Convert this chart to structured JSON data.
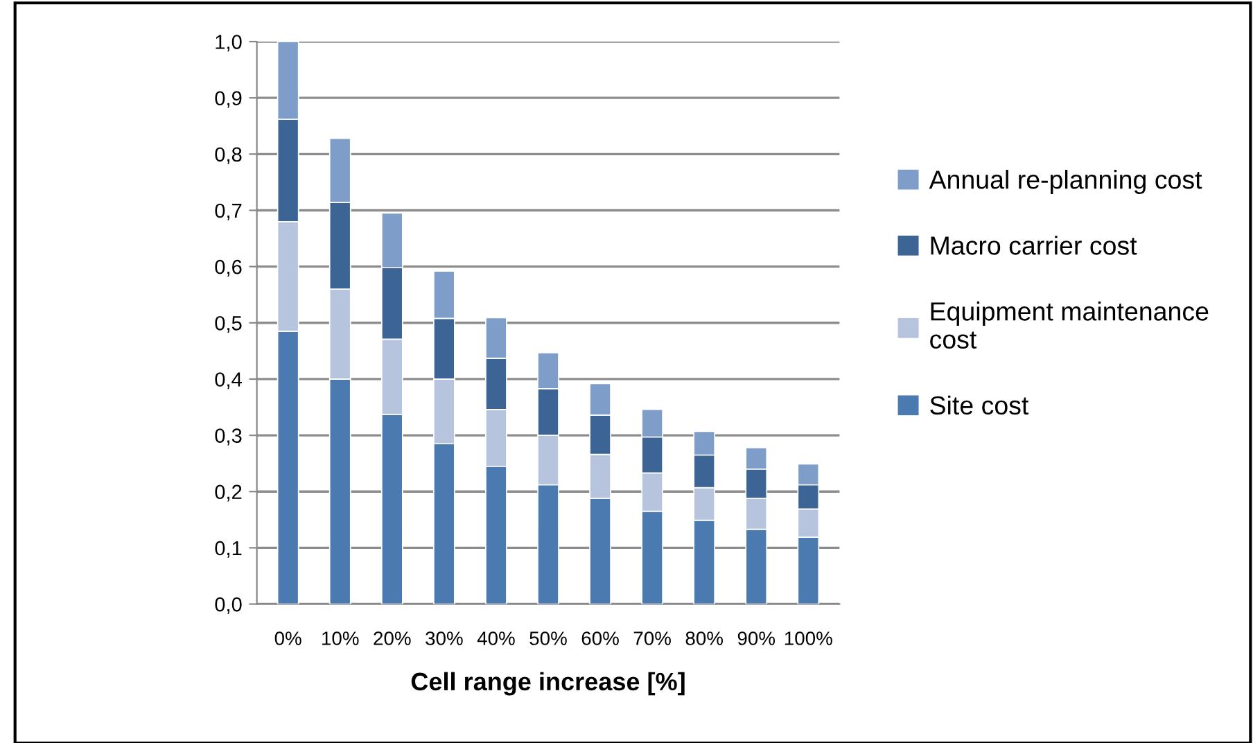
{
  "chart_data": {
    "type": "bar",
    "stacked": true,
    "xlabel": "Cell range increase [%]",
    "categories": [
      "0%",
      "10%",
      "20%",
      "30%",
      "40%",
      "50%",
      "60%",
      "70%",
      "80%",
      "90%",
      "100%"
    ],
    "series": [
      {
        "name": "Site cost",
        "color": "#4a7ab0",
        "values": [
          0.485,
          0.4,
          0.337,
          0.285,
          0.245,
          0.212,
          0.188,
          0.165,
          0.149,
          0.133,
          0.119
        ]
      },
      {
        "name": "Equipment maintenance cost",
        "color": "#b6c4de",
        "values": [
          0.195,
          0.16,
          0.134,
          0.115,
          0.101,
          0.088,
          0.078,
          0.068,
          0.058,
          0.055,
          0.05
        ]
      },
      {
        "name": "Macro carrier cost",
        "color": "#3c6595",
        "values": [
          0.182,
          0.154,
          0.127,
          0.108,
          0.091,
          0.083,
          0.07,
          0.064,
          0.058,
          0.052,
          0.043
        ]
      },
      {
        "name": "Annual re-planning cost",
        "color": "#7e9dc8",
        "values": [
          0.138,
          0.114,
          0.097,
          0.084,
          0.072,
          0.064,
          0.056,
          0.049,
          0.042,
          0.038,
          0.037
        ]
      }
    ],
    "ylim": [
      0,
      1.0
    ],
    "yticks": [
      {
        "value": 0,
        "label": "0,0"
      },
      {
        "value": 0.1,
        "label": "0,1"
      },
      {
        "value": 0.2,
        "label": "0,2"
      },
      {
        "value": 0.3,
        "label": "0,3"
      },
      {
        "value": 0.4,
        "label": "0,4"
      },
      {
        "value": 0.5,
        "label": "0,5"
      },
      {
        "value": 0.6,
        "label": "0,6"
      },
      {
        "value": 0.7,
        "label": "0,7"
      },
      {
        "value": 0.8,
        "label": "0,8"
      },
      {
        "value": 0.9,
        "label": "0,9"
      },
      {
        "value": 1.0,
        "label": "1,0"
      }
    ],
    "grid": "y",
    "legend": "right"
  }
}
